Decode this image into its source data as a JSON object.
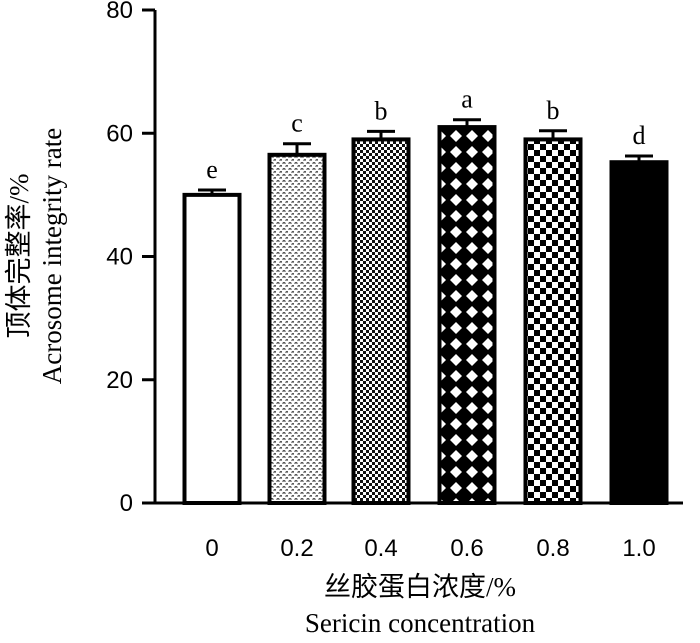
{
  "chart_data": {
    "type": "bar",
    "categories": [
      "0",
      "0.2",
      "0.4",
      "0.6",
      "0.8",
      "1.0"
    ],
    "values": [
      50.0,
      56.5,
      59.0,
      61.0,
      59.0,
      55.3
    ],
    "errors": [
      0.8,
      1.8,
      1.3,
      1.2,
      1.4,
      1.0
    ],
    "significance": [
      "e",
      "c",
      "b",
      "a",
      "b",
      "d"
    ],
    "xlabel_cn": "丝胶蛋白浓度/%",
    "xlabel_en": "Sericin concentration",
    "ylabel_cn": "顶体完整率/%",
    "ylabel_en": "Acrosome integrity rate",
    "ylim": [
      0,
      80
    ],
    "yticks": [
      "0",
      "20",
      "40",
      "60",
      "80"
    ],
    "patterns": [
      "white",
      "fine-dots",
      "fine-checker",
      "diamond",
      "checker",
      "solid-black"
    ],
    "grid": false,
    "legend": "none"
  }
}
